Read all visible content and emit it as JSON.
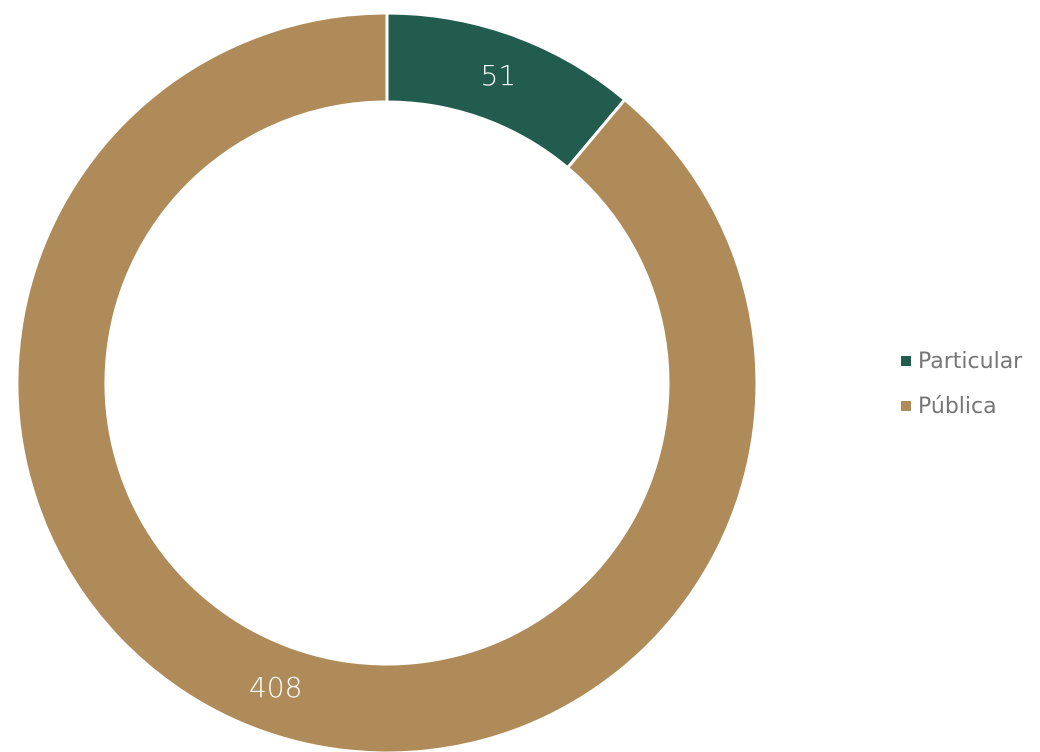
{
  "chart_data": {
    "type": "pie",
    "donut": true,
    "categories": [
      "Particular",
      "Pública"
    ],
    "values": [
      51,
      408
    ],
    "colors": [
      "#225c4e",
      "#b08b5a"
    ],
    "data_labels": [
      "51",
      "408"
    ],
    "legend": [
      "Particular",
      "Pública"
    ],
    "legend_position": "right",
    "start_angle": "top, clockwise"
  }
}
